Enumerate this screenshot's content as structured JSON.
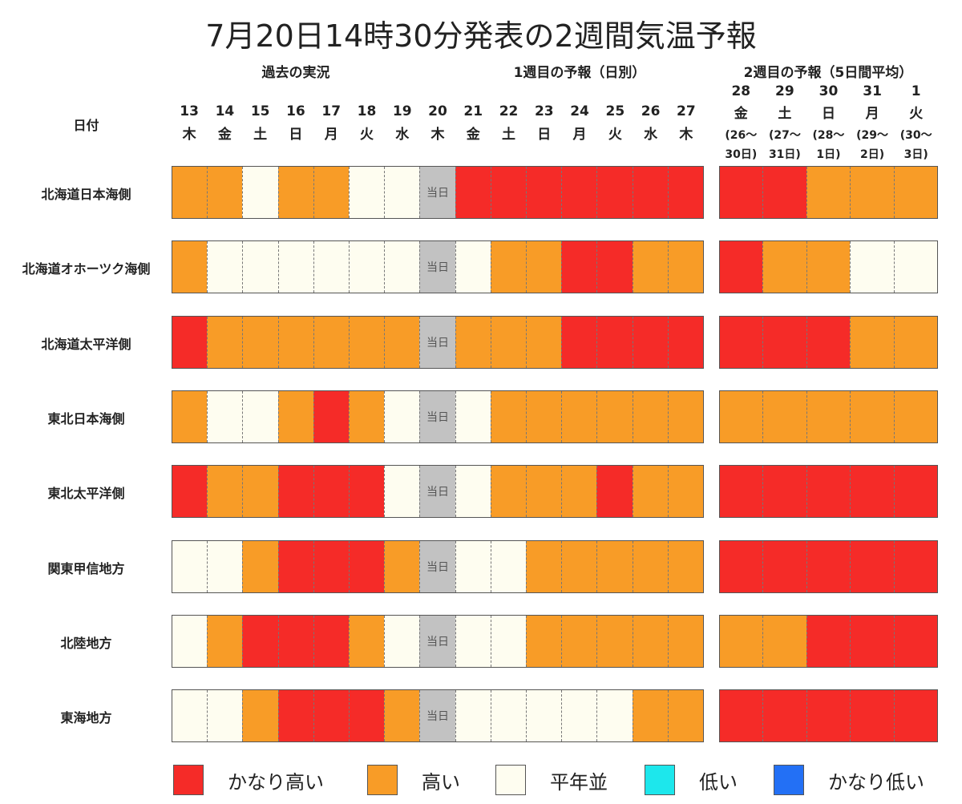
{
  "title": "7月20日14時30分発表の2週間気温予報",
  "section_headers": [
    "過去の実況",
    "1週目の予報（日別）",
    "2週目の予報（5日間平均）"
  ],
  "date_header_label": "日付",
  "colors": {
    "かなり高い": "#f52b28",
    "高い": "#f89c27",
    "平年並": "#fefdf0",
    "低い": "#1de7ec",
    "かなり低い": "#2370f5",
    "当日": "#c2c2c2"
  },
  "chart_data": {
    "type": "table",
    "days": [
      {
        "day": "13",
        "weekday": "木"
      },
      {
        "day": "14",
        "weekday": "金"
      },
      {
        "day": "15",
        "weekday": "土"
      },
      {
        "day": "16",
        "weekday": "日"
      },
      {
        "day": "17",
        "weekday": "月"
      },
      {
        "day": "18",
        "weekday": "火"
      },
      {
        "day": "19",
        "weekday": "水"
      },
      {
        "day": "20",
        "weekday": "木"
      },
      {
        "day": "21",
        "weekday": "金"
      },
      {
        "day": "22",
        "weekday": "土"
      },
      {
        "day": "23",
        "weekday": "日"
      },
      {
        "day": "24",
        "weekday": "月"
      },
      {
        "day": "25",
        "weekday": "火"
      },
      {
        "day": "26",
        "weekday": "水"
      },
      {
        "day": "27",
        "weekday": "木"
      }
    ],
    "week2_days": [
      {
        "day": "28",
        "weekday": "金",
        "range1": "(26〜",
        "range2": "30日)"
      },
      {
        "day": "29",
        "weekday": "土",
        "range1": "(27〜",
        "range2": "31日)"
      },
      {
        "day": "30",
        "weekday": "日",
        "range1": "(28〜",
        "range2": "1日)"
      },
      {
        "day": "31",
        "weekday": "月",
        "range1": "(29〜",
        "range2": "2日)"
      },
      {
        "day": "1",
        "weekday": "火",
        "range1": "(30〜",
        "range2": "3日)"
      }
    ],
    "today_label": "当日",
    "categories_legend": [
      "かなり高い",
      "高い",
      "平年並",
      "低い",
      "かなり低い"
    ],
    "regions": [
      {
        "name": "北海道日本海側",
        "daily": [
          "高い",
          "高い",
          "平年並",
          "高い",
          "高い",
          "平年並",
          "平年並",
          "当日",
          "かなり高い",
          "かなり高い",
          "かなり高い",
          "かなり高い",
          "かなり高い",
          "かなり高い",
          "かなり高い"
        ],
        "week2": [
          "かなり高い",
          "かなり高い",
          "高い",
          "高い",
          "高い"
        ]
      },
      {
        "name": "北海道オホーツク海側",
        "daily": [
          "高い",
          "平年並",
          "平年並",
          "平年並",
          "平年並",
          "平年並",
          "平年並",
          "当日",
          "平年並",
          "高い",
          "高い",
          "かなり高い",
          "かなり高い",
          "高い",
          "高い"
        ],
        "week2": [
          "かなり高い",
          "高い",
          "高い",
          "平年並",
          "平年並"
        ]
      },
      {
        "name": "北海道太平洋側",
        "daily": [
          "かなり高い",
          "高い",
          "高い",
          "高い",
          "高い",
          "高い",
          "高い",
          "当日",
          "高い",
          "高い",
          "高い",
          "かなり高い",
          "かなり高い",
          "かなり高い",
          "かなり高い"
        ],
        "week2": [
          "かなり高い",
          "かなり高い",
          "かなり高い",
          "高い",
          "高い"
        ]
      },
      {
        "name": "東北日本海側",
        "daily": [
          "高い",
          "平年並",
          "平年並",
          "高い",
          "かなり高い",
          "高い",
          "平年並",
          "当日",
          "平年並",
          "高い",
          "高い",
          "高い",
          "高い",
          "高い",
          "高い"
        ],
        "week2": [
          "高い",
          "高い",
          "高い",
          "高い",
          "高い"
        ]
      },
      {
        "name": "東北太平洋側",
        "daily": [
          "かなり高い",
          "高い",
          "高い",
          "かなり高い",
          "かなり高い",
          "かなり高い",
          "平年並",
          "当日",
          "平年並",
          "高い",
          "高い",
          "高い",
          "かなり高い",
          "高い",
          "高い"
        ],
        "week2": [
          "かなり高い",
          "かなり高い",
          "かなり高い",
          "かなり高い",
          "かなり高い"
        ]
      },
      {
        "name": "関東甲信地方",
        "daily": [
          "平年並",
          "平年並",
          "高い",
          "かなり高い",
          "かなり高い",
          "かなり高い",
          "高い",
          "当日",
          "平年並",
          "平年並",
          "高い",
          "高い",
          "高い",
          "高い",
          "高い"
        ],
        "week2": [
          "かなり高い",
          "かなり高い",
          "かなり高い",
          "かなり高い",
          "かなり高い"
        ]
      },
      {
        "name": "北陸地方",
        "daily": [
          "平年並",
          "高い",
          "かなり高い",
          "かなり高い",
          "かなり高い",
          "高い",
          "平年並",
          "当日",
          "平年並",
          "平年並",
          "高い",
          "高い",
          "高い",
          "高い",
          "高い"
        ],
        "week2": [
          "高い",
          "高い",
          "かなり高い",
          "かなり高い",
          "かなり高い"
        ]
      },
      {
        "name": "東海地方",
        "daily": [
          "平年並",
          "平年並",
          "高い",
          "かなり高い",
          "かなり高い",
          "かなり高い",
          "高い",
          "当日",
          "平年並",
          "平年並",
          "平年並",
          "平年並",
          "平年並",
          "高い",
          "高い"
        ],
        "week2": [
          "かなり高い",
          "かなり高い",
          "かなり高い",
          "かなり高い",
          "かなり高い"
        ]
      }
    ]
  }
}
